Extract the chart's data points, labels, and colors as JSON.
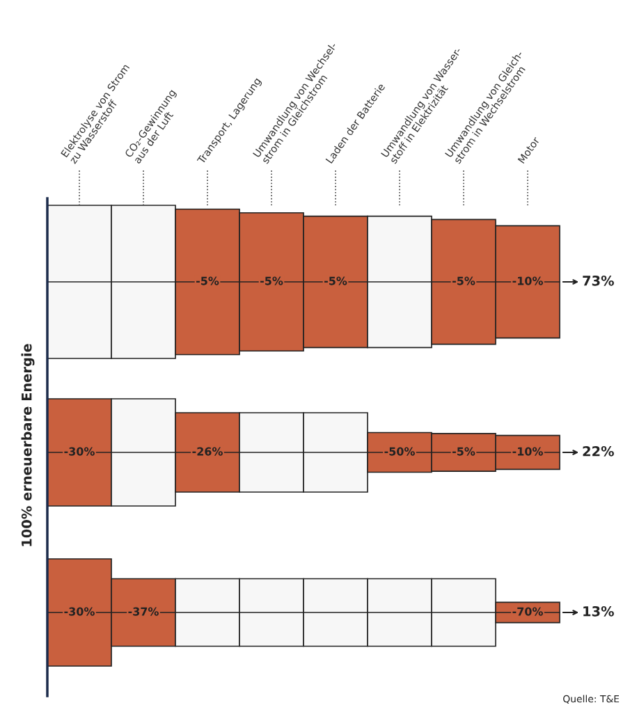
{
  "chart_data": {
    "type": "other",
    "ylabel": "100% erneuerbare Energie",
    "categories": [
      "Elektrolyse von Strom\nzu Wasserstoff",
      "CO₂-Gewinnung\naus der Luft",
      "Transport, Lagerung",
      "Umwandlung von Wechsel-\nstrom in Gleichstrom",
      "Laden der Batterie",
      "Umwandlung von Wasser-\nstoff in Elektrizität",
      "Umwandlung von Gleich-\nstrom in Wechselstrom",
      "Motor"
    ],
    "series": [
      {
        "color": "#c9603e",
        "values": [
          null,
          null,
          -5,
          -5,
          -5,
          null,
          -5,
          -10
        ],
        "value_labels": [
          null,
          null,
          "-5%",
          "-5%",
          "-5%",
          null,
          "-5%",
          "-10%"
        ]
      },
      {
        "color": "#c9603e",
        "values": [
          -30,
          null,
          -26,
          null,
          null,
          -50,
          -5,
          -10
        ],
        "value_labels": [
          "-30%",
          null,
          "-26%",
          null,
          null,
          "-50%",
          "-5%",
          "-10%"
        ]
      },
      {
        "color": "#c9603e",
        "values": [
          -30,
          -37,
          null,
          null,
          null,
          null,
          null,
          -70
        ],
        "value_labels": [
          "-30%",
          "-37%",
          null,
          null,
          null,
          null,
          null,
          "-70%"
        ]
      }
    ],
    "totals": [
      "73%",
      "22%",
      "13%"
    ],
    "annotations": [
      "Quelle: T&E"
    ]
  }
}
